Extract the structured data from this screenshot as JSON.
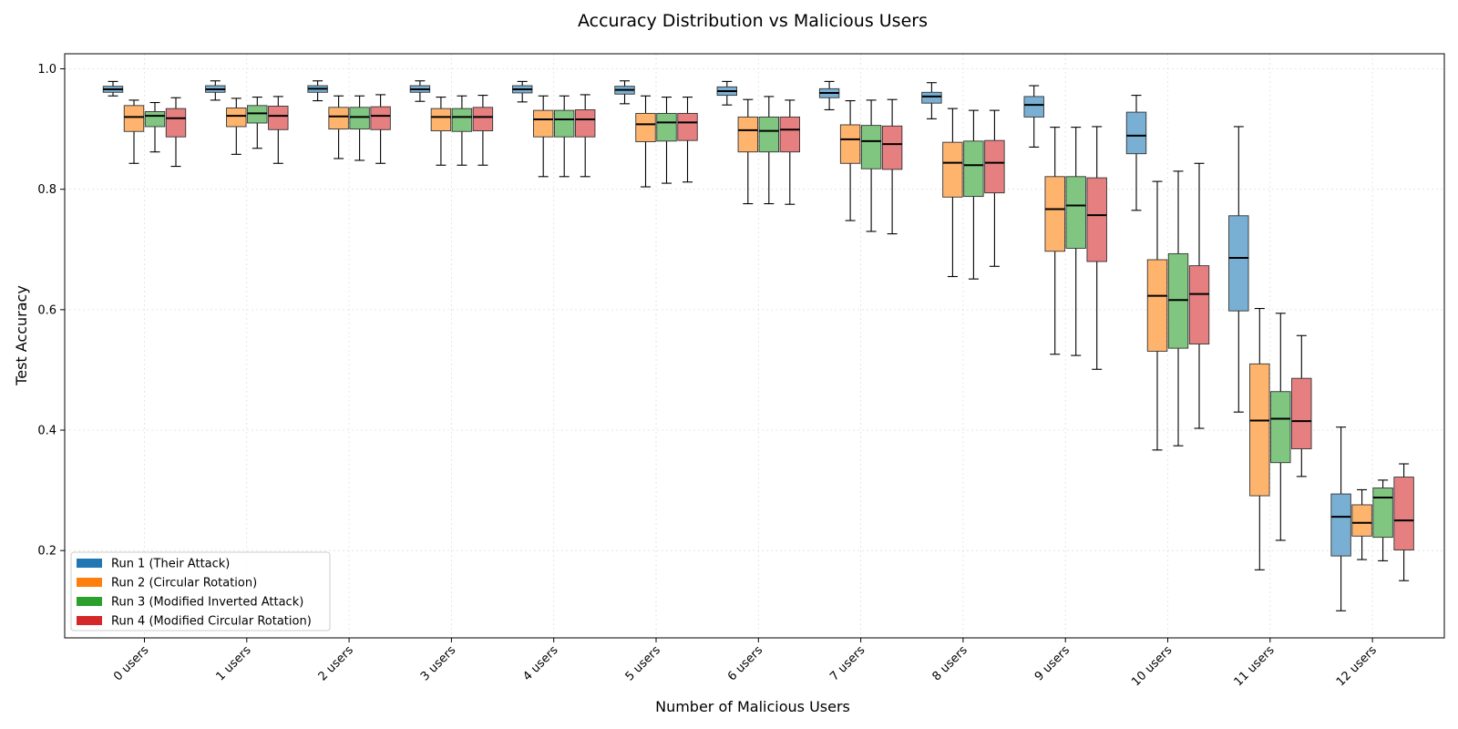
{
  "chart_data": {
    "type": "box",
    "title": "Accuracy Distribution vs Malicious Users",
    "xlabel": "Number of Malicious Users",
    "ylabel": "Test Accuracy",
    "ylim": [
      0.055,
      1.025
    ],
    "yticks": [
      0.2,
      0.4,
      0.6,
      0.8,
      1.0
    ],
    "ytick_labels": [
      "0.2",
      "0.4",
      "0.6",
      "0.8",
      "1.0"
    ],
    "grid": true,
    "legend_position": "lower-left",
    "categories": [
      "0 users",
      "1 users",
      "2 users",
      "3 users",
      "4 users",
      "5 users",
      "6 users",
      "7 users",
      "8 users",
      "9 users",
      "10 users",
      "11 users",
      "12 users"
    ],
    "series": [
      {
        "name": "Run 1 (Their Attack)",
        "legend_color": "#1f77b4",
        "box_color": "#78afd3",
        "boxes": [
          {
            "whislo": 0.955,
            "q1": 0.961,
            "med": 0.966,
            "q3": 0.971,
            "whishi": 0.979
          },
          {
            "whislo": 0.948,
            "q1": 0.961,
            "med": 0.966,
            "q3": 0.972,
            "whishi": 0.98
          },
          {
            "whislo": 0.947,
            "q1": 0.961,
            "med": 0.967,
            "q3": 0.972,
            "whishi": 0.98
          },
          {
            "whislo": 0.946,
            "q1": 0.961,
            "med": 0.966,
            "q3": 0.972,
            "whishi": 0.98
          },
          {
            "whislo": 0.945,
            "q1": 0.96,
            "med": 0.966,
            "q3": 0.972,
            "whishi": 0.979
          },
          {
            "whislo": 0.942,
            "q1": 0.958,
            "med": 0.965,
            "q3": 0.971,
            "whishi": 0.98
          },
          {
            "whislo": 0.94,
            "q1": 0.956,
            "med": 0.963,
            "q3": 0.97,
            "whishi": 0.979
          },
          {
            "whislo": 0.932,
            "q1": 0.952,
            "med": 0.96,
            "q3": 0.967,
            "whishi": 0.979
          },
          {
            "whislo": 0.917,
            "q1": 0.943,
            "med": 0.954,
            "q3": 0.961,
            "whishi": 0.977
          },
          {
            "whislo": 0.87,
            "q1": 0.92,
            "med": 0.94,
            "q3": 0.954,
            "whishi": 0.972
          },
          {
            "whislo": 0.765,
            "q1": 0.859,
            "med": 0.889,
            "q3": 0.928,
            "whishi": 0.956
          },
          {
            "whislo": 0.43,
            "q1": 0.598,
            "med": 0.686,
            "q3": 0.756,
            "whishi": 0.904
          },
          {
            "whislo": 0.1,
            "q1": 0.191,
            "med": 0.256,
            "q3": 0.294,
            "whishi": 0.405
          }
        ]
      },
      {
        "name": "Run 2 (Circular Rotation)",
        "legend_color": "#ff7f0e",
        "box_color": "#ffb46e",
        "boxes": [
          {
            "whislo": 0.843,
            "q1": 0.896,
            "med": 0.92,
            "q3": 0.939,
            "whishi": 0.948
          },
          {
            "whislo": 0.858,
            "q1": 0.904,
            "med": 0.922,
            "q3": 0.935,
            "whishi": 0.951
          },
          {
            "whislo": 0.851,
            "q1": 0.9,
            "med": 0.921,
            "q3": 0.936,
            "whishi": 0.955
          },
          {
            "whislo": 0.84,
            "q1": 0.897,
            "med": 0.92,
            "q3": 0.934,
            "whishi": 0.953
          },
          {
            "whislo": 0.821,
            "q1": 0.887,
            "med": 0.916,
            "q3": 0.931,
            "whishi": 0.955
          },
          {
            "whislo": 0.804,
            "q1": 0.879,
            "med": 0.908,
            "q3": 0.926,
            "whishi": 0.955
          },
          {
            "whislo": 0.776,
            "q1": 0.862,
            "med": 0.898,
            "q3": 0.92,
            "whishi": 0.949
          },
          {
            "whislo": 0.748,
            "q1": 0.843,
            "med": 0.883,
            "q3": 0.907,
            "whishi": 0.947
          },
          {
            "whislo": 0.655,
            "q1": 0.787,
            "med": 0.844,
            "q3": 0.878,
            "whishi": 0.934
          },
          {
            "whislo": 0.526,
            "q1": 0.697,
            "med": 0.767,
            "q3": 0.821,
            "whishi": 0.903
          },
          {
            "whislo": 0.367,
            "q1": 0.531,
            "med": 0.623,
            "q3": 0.683,
            "whishi": 0.813
          },
          {
            "whislo": 0.168,
            "q1": 0.291,
            "med": 0.416,
            "q3": 0.51,
            "whishi": 0.602
          },
          {
            "whislo": 0.185,
            "q1": 0.224,
            "med": 0.246,
            "q3": 0.276,
            "whishi": 0.301
          }
        ]
      },
      {
        "name": "Run 3 (Modified Inverted Attack)",
        "legend_color": "#2ca02c",
        "box_color": "#80c680",
        "boxes": [
          {
            "whislo": 0.862,
            "q1": 0.904,
            "med": 0.922,
            "q3": 0.929,
            "whishi": 0.944
          },
          {
            "whislo": 0.868,
            "q1": 0.91,
            "med": 0.926,
            "q3": 0.939,
            "whishi": 0.953
          },
          {
            "whislo": 0.848,
            "q1": 0.9,
            "med": 0.92,
            "q3": 0.936,
            "whishi": 0.955
          },
          {
            "whislo": 0.84,
            "q1": 0.896,
            "med": 0.92,
            "q3": 0.934,
            "whishi": 0.955
          },
          {
            "whislo": 0.821,
            "q1": 0.887,
            "med": 0.916,
            "q3": 0.931,
            "whishi": 0.955
          },
          {
            "whislo": 0.81,
            "q1": 0.88,
            "med": 0.911,
            "q3": 0.926,
            "whishi": 0.953
          },
          {
            "whislo": 0.776,
            "q1": 0.862,
            "med": 0.897,
            "q3": 0.92,
            "whishi": 0.954
          },
          {
            "whislo": 0.73,
            "q1": 0.834,
            "med": 0.88,
            "q3": 0.906,
            "whishi": 0.948
          },
          {
            "whislo": 0.651,
            "q1": 0.788,
            "med": 0.84,
            "q3": 0.88,
            "whishi": 0.931
          },
          {
            "whislo": 0.524,
            "q1": 0.702,
            "med": 0.773,
            "q3": 0.821,
            "whishi": 0.903
          },
          {
            "whislo": 0.374,
            "q1": 0.536,
            "med": 0.616,
            "q3": 0.693,
            "whishi": 0.83
          },
          {
            "whislo": 0.217,
            "q1": 0.346,
            "med": 0.419,
            "q3": 0.464,
            "whishi": 0.594
          },
          {
            "whislo": 0.183,
            "q1": 0.222,
            "med": 0.288,
            "q3": 0.304,
            "whishi": 0.317
          }
        ]
      },
      {
        "name": "Run 4 (Modified Circular Rotation)",
        "legend_color": "#d62728",
        "box_color": "#e67f80",
        "boxes": [
          {
            "whislo": 0.838,
            "q1": 0.887,
            "med": 0.918,
            "q3": 0.934,
            "whishi": 0.952
          },
          {
            "whislo": 0.843,
            "q1": 0.899,
            "med": 0.922,
            "q3": 0.938,
            "whishi": 0.954
          },
          {
            "whislo": 0.843,
            "q1": 0.899,
            "med": 0.922,
            "q3": 0.937,
            "whishi": 0.957
          },
          {
            "whislo": 0.84,
            "q1": 0.897,
            "med": 0.92,
            "q3": 0.936,
            "whishi": 0.956
          },
          {
            "whislo": 0.821,
            "q1": 0.887,
            "med": 0.916,
            "q3": 0.932,
            "whishi": 0.957
          },
          {
            "whislo": 0.812,
            "q1": 0.881,
            "med": 0.911,
            "q3": 0.926,
            "whishi": 0.953
          },
          {
            "whislo": 0.775,
            "q1": 0.862,
            "med": 0.899,
            "q3": 0.92,
            "whishi": 0.948
          },
          {
            "whislo": 0.726,
            "q1": 0.833,
            "med": 0.875,
            "q3": 0.905,
            "whishi": 0.949
          },
          {
            "whislo": 0.672,
            "q1": 0.794,
            "med": 0.844,
            "q3": 0.881,
            "whishi": 0.931
          },
          {
            "whislo": 0.501,
            "q1": 0.68,
            "med": 0.757,
            "q3": 0.819,
            "whishi": 0.904
          },
          {
            "whislo": 0.403,
            "q1": 0.543,
            "med": 0.626,
            "q3": 0.673,
            "whishi": 0.843
          },
          {
            "whislo": 0.323,
            "q1": 0.369,
            "med": 0.415,
            "q3": 0.486,
            "whishi": 0.557
          },
          {
            "whislo": 0.15,
            "q1": 0.201,
            "med": 0.25,
            "q3": 0.322,
            "whishi": 0.344
          }
        ]
      }
    ]
  }
}
